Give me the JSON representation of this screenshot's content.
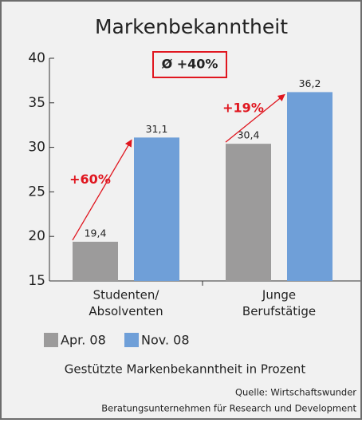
{
  "chart_data": {
    "type": "bar",
    "title": "Markenbekanntheit",
    "subtitle": "Gestützte Markenbekanntheit in Prozent",
    "categories": [
      "Studenten/\nAbsolventen",
      "Junge\nBerufstätige"
    ],
    "series": [
      {
        "name": "Apr. 08",
        "color": "#9c9b9b",
        "values": [
          19.4,
          30.4
        ],
        "value_labels": [
          "19,4",
          "30,4"
        ]
      },
      {
        "name": "Nov. 08",
        "color": "#6f9fd8",
        "values": [
          31.1,
          36.2
        ],
        "value_labels": [
          "31,1",
          "36,2"
        ]
      }
    ],
    "ylim": [
      15,
      40
    ],
    "yticks": [
      15,
      20,
      25,
      30,
      35,
      40
    ],
    "annotations": [
      "Ø +40%",
      "+60%",
      "+19%"
    ],
    "source": [
      "Quelle: Wirtschaftswunder",
      "Beratungsunternehmen für Research und Development"
    ]
  }
}
